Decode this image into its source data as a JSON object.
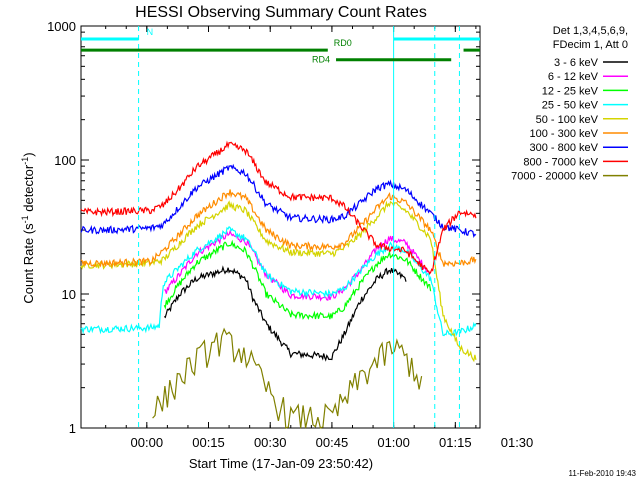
{
  "chart_data": {
    "type": "line",
    "title": "HESSI Observing Summary Count Rates",
    "xlabel": "Start Time (17-Jan-09 23:50:42)",
    "ylabel": "Count Rate (s⁻¹ detector⁻¹)",
    "ylabel_parts": {
      "main": "Count Rate (s",
      "sup1": "-1",
      "mid": " detector",
      "sup2": "-1",
      "close": ")"
    },
    "y_scale": "log",
    "ylim": [
      1,
      1000
    ],
    "xlim_minutes": [
      -6,
      91
    ],
    "x_tick_minutes": [
      10,
      25,
      40,
      55,
      70,
      85,
      100
    ],
    "x_tick_labels": [
      "00:00",
      "00:15",
      "00:30",
      "00:45",
      "01:00",
      "01:15",
      "01:30"
    ],
    "y_ticks": [
      1,
      10,
      100,
      1000
    ],
    "y_tick_labels": [
      "1",
      "10",
      "100",
      "1000"
    ],
    "legend_header": [
      "Det 1,3,4,5,6,9,",
      "FDecim 1, Att 0"
    ],
    "legend_position": "right",
    "series": [
      {
        "name": "3 - 6 keV",
        "color": "#000000",
        "x": [
          0,
          13,
          14,
          18,
          22,
          30,
          34,
          36,
          39,
          45,
          55,
          58,
          62,
          66,
          69,
          73,
          79,
          82
        ],
        "y": [
          null,
          null,
          6.5,
          10,
          13,
          15.5,
          13,
          9,
          6,
          3.6,
          3.4,
          5,
          9,
          13,
          15.2,
          13,
          null,
          null
        ]
      },
      {
        "name": "6 - 12 keV",
        "color": "#ff00ff",
        "x": [
          0,
          13,
          14,
          18,
          22,
          30,
          34,
          36,
          39,
          45,
          55,
          58,
          62,
          66,
          69,
          73,
          79,
          82
        ],
        "y": [
          null,
          null,
          10,
          14,
          20,
          28,
          25,
          20,
          14,
          9.8,
          9.5,
          11,
          15,
          22,
          26,
          24,
          14,
          null
        ]
      },
      {
        "name": "12 - 25 keV",
        "color": "#00ff00",
        "x": [
          0,
          13,
          14,
          18,
          22,
          30,
          34,
          36,
          39,
          45,
          55,
          58,
          62,
          66,
          69,
          73,
          79,
          82
        ],
        "y": [
          null,
          null,
          8,
          12,
          17,
          24,
          21,
          16,
          10,
          7,
          6.8,
          8,
          12,
          17,
          20,
          18,
          11,
          null
        ]
      },
      {
        "name": "25 - 50 keV",
        "color": "#00ffff",
        "x": [
          0,
          11,
          13,
          14,
          18,
          22,
          30,
          34,
          36,
          39,
          45,
          55,
          58,
          62,
          66,
          69,
          73,
          79,
          82,
          86,
          90
        ],
        "y": [
          5.5,
          5.6,
          5.8,
          12,
          16,
          21,
          30,
          26,
          21,
          14,
          10.5,
          10,
          11,
          15,
          20,
          23,
          21,
          13,
          5,
          5.2,
          5.8
        ]
      },
      {
        "name": "50 - 100 keV",
        "color": "#d4d400",
        "x": [
          0,
          11,
          14,
          18,
          22,
          30,
          34,
          36,
          39,
          45,
          55,
          58,
          62,
          66,
          69,
          73,
          79,
          82,
          86,
          90
        ],
        "y": [
          16.5,
          17,
          18,
          24,
          32,
          46,
          42,
          34,
          25,
          20.5,
          20,
          22,
          28,
          38,
          48,
          42,
          26,
          7,
          4,
          3.3
        ]
      },
      {
        "name": "100 - 300 keV",
        "color": "#ff8c00",
        "x": [
          0,
          11,
          14,
          18,
          22,
          30,
          34,
          36,
          39,
          45,
          55,
          58,
          62,
          66,
          69,
          73,
          79,
          82,
          86,
          90
        ],
        "y": [
          17,
          17.5,
          21,
          28,
          38,
          58,
          52,
          42,
          30,
          23,
          22.5,
          24,
          32,
          44,
          54,
          48,
          30,
          17,
          17,
          18
        ]
      },
      {
        "name": "300 - 800 keV",
        "color": "#0000ff",
        "x": [
          0,
          11,
          14,
          18,
          22,
          30,
          34,
          36,
          39,
          45,
          55,
          58,
          62,
          66,
          69,
          73,
          79,
          82,
          86,
          90
        ],
        "y": [
          30,
          31,
          33,
          45,
          62,
          88,
          80,
          65,
          47,
          37,
          36,
          38,
          48,
          62,
          66,
          60,
          40,
          32,
          30,
          28
        ]
      },
      {
        "name": "800 - 7000 keV",
        "color": "#ff0000",
        "x": [
          0,
          11,
          14,
          18,
          22,
          30,
          34,
          36,
          39,
          45,
          55,
          58,
          62,
          66,
          69,
          73,
          79,
          82,
          86,
          90
        ],
        "y": [
          41,
          42,
          46,
          62,
          88,
          130,
          118,
          95,
          68,
          53,
          52,
          45,
          32,
          23,
          22,
          21,
          14,
          30,
          41,
          39
        ]
      },
      {
        "name": "7000 - 20000 keV",
        "color": "#808000",
        "x": [
          0,
          10,
          11,
          14,
          18,
          22,
          28,
          34,
          38,
          42,
          45,
          55,
          58,
          62,
          66,
          70,
          73,
          77,
          82
        ],
        "y": [
          null,
          null,
          1.3,
          1.6,
          2.4,
          3.2,
          4.6,
          3.6,
          2.2,
          1.5,
          1.2,
          1.2,
          1.6,
          2.4,
          3.2,
          4.0,
          3.4,
          2.2,
          null
        ]
      }
    ],
    "intervals": [
      {
        "label": "N",
        "color": "#00ffff",
        "y": 800,
        "segments": [
          [
            -6,
            8
          ],
          [
            70,
            91
          ]
        ]
      },
      {
        "label": "RD0",
        "color": "#008000",
        "y": 660,
        "segments": [
          [
            -6,
            54
          ],
          [
            87,
            91
          ]
        ]
      },
      {
        "label": "RD4",
        "color": "#008000",
        "y": 560,
        "segments": [
          [
            56,
            84
          ]
        ]
      }
    ],
    "vertical_markers_minutes": [
      8,
      70,
      80,
      86
    ],
    "vertical_solid_minutes": [
      70
    ]
  },
  "footer": {
    "timestamp": "11-Feb-2010 19:43"
  }
}
